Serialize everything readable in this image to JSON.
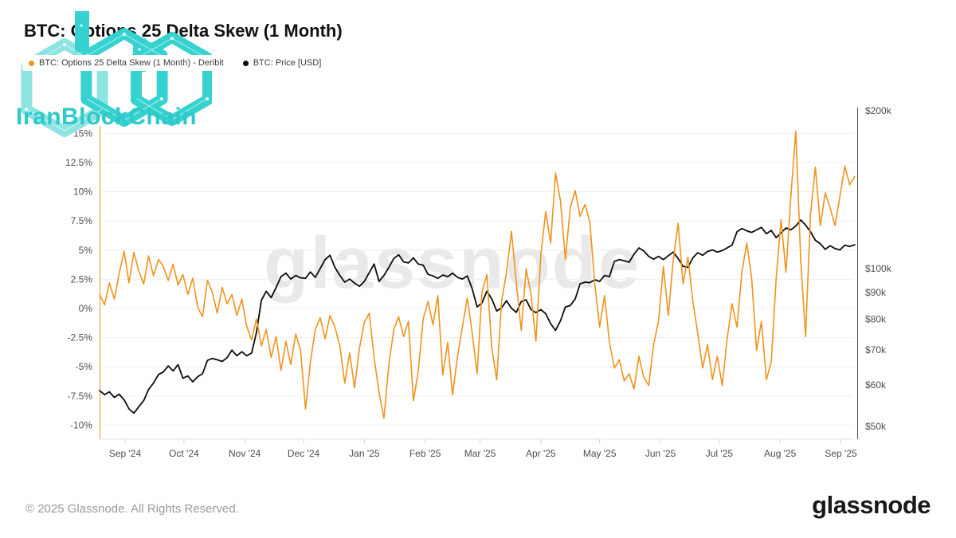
{
  "header": {
    "title": "BTC: Options 25 Delta Skew (1 Month)"
  },
  "logo": {
    "text": "IranBlockChain",
    "teal": "#35d2d0",
    "teal_light": "#8de4e2",
    "text_color": "#2fc9c9"
  },
  "legend": [
    {
      "label": "BTC: Options 25 Delta Skew (1 Month) - Deribit",
      "color": "#f0931c"
    },
    {
      "label": "BTC: Price [USD]",
      "color": "#0b0b0b"
    }
  ],
  "watermark": "glassnode",
  "footer": {
    "copyright": "© 2025 Glassnode. All Rights Reserved.",
    "brand": "glassnode"
  },
  "chart_data": {
    "type": "line",
    "title": "BTC: Options 25 Delta Skew (1 Month)",
    "x_start_date": "2024-08-19",
    "x_end_date": "2025-09-08",
    "x_step_days": 2.5,
    "grid": "horizontal",
    "legend_position": "top-left",
    "x_ticks": [
      {
        "label": "Sep '24",
        "day": 13
      },
      {
        "label": "Oct '24",
        "day": 43
      },
      {
        "label": "Nov '24",
        "day": 74
      },
      {
        "label": "Dec '24",
        "day": 104
      },
      {
        "label": "Jan '25",
        "day": 135
      },
      {
        "label": "Feb '25",
        "day": 166
      },
      {
        "label": "Mar '25",
        "day": 194
      },
      {
        "label": "Apr '25",
        "day": 225
      },
      {
        "label": "May '25",
        "day": 255
      },
      {
        "label": "Jun '25",
        "day": 286
      },
      {
        "label": "Jul '25",
        "day": 316
      },
      {
        "label": "Aug '25",
        "day": 347
      },
      {
        "label": "Sep '25",
        "day": 378
      }
    ],
    "left_axis": {
      "unit": "%",
      "color": "#f0931c",
      "ticks": [
        "15%",
        "12.5%",
        "10%",
        "7.5%",
        "5%",
        "2.5%",
        "0%",
        "-2.5%",
        "-5%",
        "-7.5%",
        "-10%"
      ],
      "values": [
        15,
        12.5,
        10,
        7.5,
        5,
        2.5,
        0,
        -2.5,
        -5,
        -7.5,
        -10
      ],
      "range": [
        -11.2,
        16.2
      ]
    },
    "right_axis": {
      "unit": "USD",
      "scale": "log",
      "ticks": [
        "$200k",
        "$100k",
        "$90k",
        "$80k",
        "$70k",
        "$60k",
        "$50k"
      ],
      "values_k": [
        200,
        100,
        90,
        80,
        70,
        60,
        50
      ],
      "range_k": [
        46,
        200
      ]
    },
    "series": [
      {
        "name": "BTC: Options 25 Delta Skew (1 Month) - Deribit",
        "axis": "left",
        "unit": "%",
        "color": "#f0931c",
        "values": [
          1.2,
          0.3,
          2.2,
          0.8,
          3.0,
          4.9,
          2.2,
          4.8,
          3.2,
          2.1,
          4.5,
          2.8,
          4.2,
          3.6,
          2.4,
          3.8,
          2.0,
          2.9,
          1.2,
          2.6,
          0.1,
          -0.7,
          2.4,
          1.4,
          -0.4,
          1.8,
          0.4,
          1.2,
          -0.6,
          0.8,
          -1.5,
          -2.7,
          -0.9,
          -3.2,
          -1.8,
          -4.2,
          -2.4,
          -5.3,
          -2.8,
          -4.8,
          -2.2,
          -3.6,
          -8.6,
          -4.6,
          -1.8,
          -0.8,
          -2.6,
          -0.6,
          -1.6,
          -3.2,
          -6.4,
          -3.8,
          -6.8,
          -3.4,
          -1.2,
          -0.4,
          -4.2,
          -7.2,
          -9.4,
          -4.8,
          -1.8,
          -0.7,
          -2.4,
          -1.1,
          -7.9,
          -5.4,
          -0.9,
          0.6,
          -1.4,
          1.1,
          -5.7,
          -2.9,
          -7.4,
          -4.1,
          -1.6,
          0.9,
          -2.1,
          -5.6,
          1.4,
          2.9,
          -3.4,
          -6.1,
          0.6,
          3.1,
          6.6,
          2.2,
          -1.9,
          3.4,
          1.2,
          -2.8,
          4.6,
          8.3,
          5.6,
          11.6,
          9.2,
          4.2,
          8.6,
          10.1,
          7.9,
          8.9,
          7.4,
          2.1,
          -1.6,
          1.1,
          -2.9,
          -5.1,
          -4.4,
          -6.2,
          -5.6,
          -6.9,
          -4.1,
          -5.9,
          -6.6,
          -3.1,
          -1.1,
          3.6,
          -0.6,
          4.1,
          7.3,
          2.1,
          4.4,
          0.6,
          -2.1,
          -5.1,
          -3.1,
          -6.1,
          -4.1,
          -6.6,
          -2.6,
          0.4,
          -1.6,
          3.1,
          5.6,
          2.6,
          -3.6,
          -1.1,
          -6.1,
          -4.6,
          2.6,
          7.6,
          3.1,
          9.6,
          15.2,
          4.1,
          -2.4,
          8.1,
          12.1,
          7.1,
          9.9,
          8.6,
          7.1,
          9.6,
          12.2,
          10.6,
          11.3
        ]
      },
      {
        "name": "BTC: Price [USD]",
        "axis": "right",
        "unit": "USD_thousands",
        "color": "#0b0b0b",
        "values": [
          58.5,
          57.5,
          58.2,
          56.8,
          57.6,
          56.2,
          54.0,
          53.0,
          54.5,
          56.0,
          58.8,
          60.5,
          62.8,
          63.5,
          65.2,
          63.8,
          65.6,
          61.8,
          62.4,
          60.8,
          62.2,
          63.0,
          66.8,
          67.4,
          67.0,
          66.5,
          67.6,
          69.9,
          68.2,
          69.4,
          68.2,
          69.0,
          75.5,
          87.0,
          90.5,
          88.0,
          92.0,
          96.5,
          98.0,
          95.5,
          97.0,
          96.0,
          95.8,
          98.5,
          96.2,
          100.0,
          104.0,
          106.0,
          100.5,
          97.0,
          94.2,
          95.5,
          93.8,
          92.5,
          94.5,
          98.2,
          102.0,
          94.5,
          97.0,
          100.5,
          104.5,
          106.2,
          103.0,
          102.5,
          104.8,
          102.0,
          101.5,
          97.5,
          96.8,
          95.8,
          97.2,
          96.5,
          98.0,
          96.2,
          95.5,
          96.8,
          91.5,
          84.5,
          86.0,
          90.5,
          87.5,
          83.0,
          84.2,
          86.8,
          84.0,
          82.5,
          86.5,
          87.2,
          83.5,
          82.4,
          83.5,
          82.0,
          78.5,
          76.2,
          79.5,
          84.5,
          85.0,
          87.5,
          93.5,
          94.2,
          94.0,
          95.2,
          94.5,
          97.0,
          96.5,
          103.2,
          104.0,
          103.5,
          102.8,
          106.5,
          109.5,
          108.0,
          105.5,
          104.2,
          105.5,
          104.0,
          105.8,
          107.5,
          104.5,
          101.0,
          100.5,
          104.8,
          107.2,
          106.0,
          107.8,
          108.5,
          107.5,
          108.2,
          109.5,
          110.8,
          117.5,
          119.2,
          118.0,
          117.2,
          118.5,
          119.8,
          116.5,
          118.2,
          114.5,
          117.0,
          119.5,
          118.5,
          120.5,
          123.8,
          121.0,
          117.5,
          113.2,
          111.5,
          108.8,
          110.5,
          109.2,
          108.5,
          110.8,
          110.2,
          111.0
        ]
      }
    ]
  }
}
